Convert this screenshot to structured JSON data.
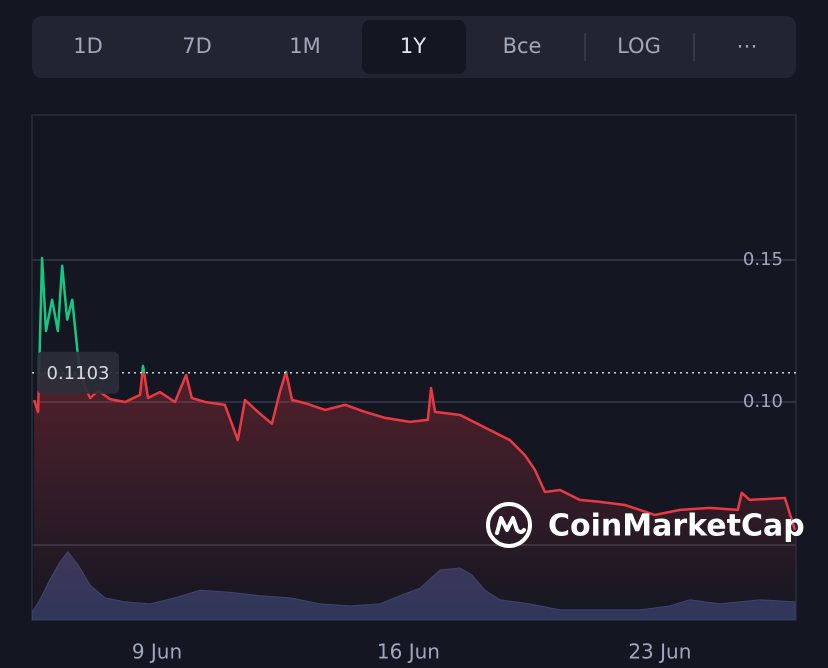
{
  "controls": {
    "tabs": [
      "1D",
      "7D",
      "1M",
      "1Y",
      "Bce",
      "LOG",
      "⋯"
    ],
    "active": "1Y"
  },
  "chart_data": {
    "type": "line",
    "watermark": "CoinMarketCap",
    "baseline": 0.1103,
    "color_above": "#16c784",
    "color_below": "#ea3943",
    "xlim": [
      5.52,
      26.79
    ],
    "xticks": [
      {
        "value": 9,
        "label": "9 Jun"
      },
      {
        "value": 16,
        "label": "16 Jun"
      },
      {
        "value": 23,
        "label": "23 Jun"
      }
    ],
    "ylim": [
      0.0232,
      0.2011
    ],
    "yticks": [
      {
        "value": 0.1,
        "label": "0.10"
      },
      0.15
    ],
    "y2lim": [
      0,
      100
    ],
    "grid": true,
    "series": [
      {
        "color": "#ea3943",
        "x": [
          5.58,
          5.69,
          5.8,
          5.91,
          6.08,
          6.24,
          6.36,
          6.5,
          6.64,
          6.81,
          6.97,
          7.14,
          7.36,
          7.69,
          8.11,
          8.53,
          8.61,
          8.75,
          9.08,
          9.5,
          9.81,
          9.97,
          10.34,
          10.89,
          11.25,
          11.45,
          11.81,
          12.2,
          12.42,
          12.59,
          12.76,
          13.12,
          13.68,
          14.24,
          14.79,
          15.35,
          16.04,
          16.54,
          16.63,
          16.74,
          17.44,
          18.27,
          18.82,
          19.24,
          19.52,
          19.8,
          20.22,
          20.77,
          21.33,
          22.03,
          22.86,
          23.56,
          24.39,
          25.17,
          25.28,
          25.5,
          26.48,
          26.76
        ],
        "values": [
          0.1007,
          0.0965,
          0.1507,
          0.125,
          0.136,
          0.125,
          0.148,
          0.129,
          0.136,
          0.115,
          0.106,
          0.1014,
          0.104,
          0.101,
          0.1,
          0.1025,
          0.1127,
          0.1014,
          0.1035,
          0.1,
          0.1095,
          0.1014,
          0.1,
          0.099,
          0.0866,
          0.1007,
          0.0965,
          0.0923,
          0.1035,
          0.1106,
          0.1007,
          0.0996,
          0.0972,
          0.099,
          0.0965,
          0.0944,
          0.093,
          0.0937,
          0.1049,
          0.0965,
          0.0954,
          0.0901,
          0.0866,
          0.0813,
          0.0761,
          0.0683,
          0.069,
          0.0655,
          0.0648,
          0.0637,
          0.0602,
          0.062,
          0.0627,
          0.062,
          0.068,
          0.0655,
          0.0662,
          0.0549
        ]
      },
      {
        "color": "#2f375a",
        "axis": "y2",
        "x": [
          5.53,
          5.74,
          6.02,
          6.3,
          6.52,
          6.8,
          7.14,
          7.55,
          8.11,
          8.81,
          9.5,
          10.2,
          11.03,
          11.87,
          12.7,
          13.54,
          14.37,
          15.21,
          15.76,
          16.32,
          16.88,
          17.43,
          17.77,
          18.13,
          18.55,
          19.38,
          20.22,
          21.33,
          22.44,
          23.28,
          23.83,
          24.67,
          25.78,
          26.76
        ],
        "values": [
          1.6,
          4,
          8,
          11.5,
          13.5,
          10.9,
          6.9,
          4.4,
          3.6,
          3.2,
          4.4,
          5.9,
          5.5,
          4.8,
          4.4,
          3.2,
          2.8,
          3.2,
          4.8,
          6.3,
          9.9,
          10.3,
          8.9,
          5.9,
          4,
          3.2,
          2,
          2,
          2,
          2.8,
          4,
          3.2,
          4,
          3.6
        ]
      }
    ]
  }
}
